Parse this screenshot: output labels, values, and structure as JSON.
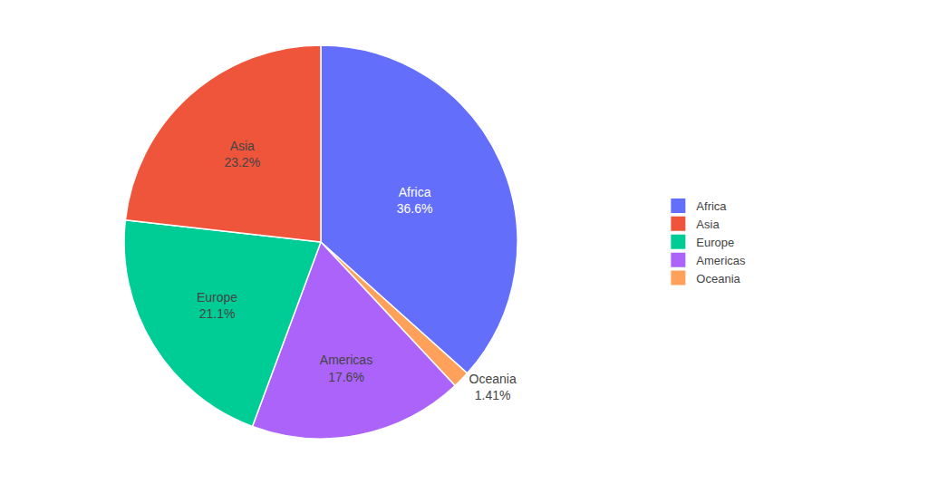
{
  "chart_data": {
    "type": "pie",
    "categories": [
      "Africa",
      "Oceania",
      "Americas",
      "Europe",
      "Asia"
    ],
    "values": [
      36.6,
      1.41,
      17.6,
      21.1,
      23.2
    ],
    "value_labels": [
      "36.6%",
      "1.41%",
      "17.6%",
      "21.1%",
      "23.2%"
    ],
    "colors": [
      "#636EFA",
      "#FFA15A",
      "#AB63FA",
      "#00CC96",
      "#EF553B"
    ],
    "data_labels": true,
    "legend": "right"
  }
}
